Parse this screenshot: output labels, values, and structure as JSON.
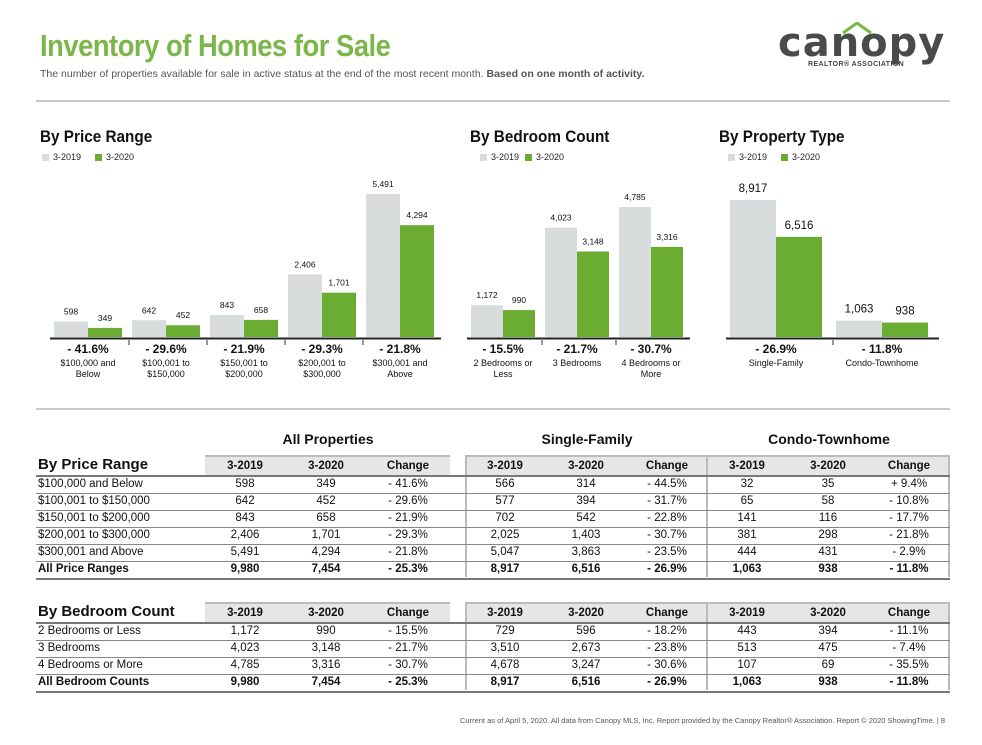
{
  "header": {
    "title": "Inventory of Homes for Sale",
    "subtitle": "The number of properties available for sale in active status at the end of the most recent month.",
    "subtitle_bold": "Based on one month of activity."
  },
  "logo": {
    "word": "canopy",
    "sub": "REALTOR® ASSOCIATION"
  },
  "colors": {
    "prior": "#d9dcdc",
    "current": "#6aad32",
    "title": "#7ab648"
  },
  "legend": {
    "prior": "3-2019",
    "current": "3-2020"
  },
  "chart_data": [
    {
      "type": "bar",
      "title": "By Price Range",
      "categories": [
        "$100,000 and Below",
        "$100,001 to $150,000",
        "$150,001 to $200,000",
        "$200,001 to $300,000",
        "$300,001 and Above"
      ],
      "category_lines": [
        [
          "$100,000 and",
          "Below"
        ],
        [
          "$100,001 to",
          "$150,000"
        ],
        [
          "$150,001 to",
          "$200,000"
        ],
        [
          "$200,001 to",
          "$300,000"
        ],
        [
          "$300,001 and",
          "Above"
        ]
      ],
      "series": [
        {
          "name": "3-2019",
          "values": [
            598,
            642,
            843,
            2406,
            5491
          ]
        },
        {
          "name": "3-2020",
          "values": [
            349,
            452,
            658,
            1701,
            4294
          ]
        }
      ],
      "value_labels": [
        [
          "598",
          "642",
          "843",
          "2,406",
          "5,491"
        ],
        [
          "349",
          "452",
          "658",
          "1,701",
          "4,294"
        ]
      ],
      "changes": [
        "- 41.6%",
        "- 29.6%",
        "- 21.9%",
        "- 29.3%",
        "- 21.8%"
      ],
      "ylim": [
        0,
        5491
      ]
    },
    {
      "type": "bar",
      "title": "By Bedroom Count",
      "categories": [
        "2 Bedrooms or Less",
        "3 Bedrooms",
        "4 Bedrooms or More"
      ],
      "category_lines": [
        [
          "2 Bedrooms or",
          "Less"
        ],
        [
          "3 Bedrooms"
        ],
        [
          "4 Bedrooms or",
          "More"
        ]
      ],
      "series": [
        {
          "name": "3-2019",
          "values": [
            1172,
            4023,
            4785
          ]
        },
        {
          "name": "3-2020",
          "values": [
            990,
            3148,
            3316
          ]
        }
      ],
      "value_labels": [
        [
          "1,172",
          "4,023",
          "4,785"
        ],
        [
          "990",
          "3,148",
          "3,316"
        ]
      ],
      "changes": [
        "- 15.5%",
        "- 21.7%",
        "- 30.7%"
      ],
      "ylim": [
        0,
        4785
      ]
    },
    {
      "type": "bar",
      "title": "By Property Type",
      "categories": [
        "Single-Family",
        "Condo-Townhome"
      ],
      "category_lines": [
        [
          "Single-Family"
        ],
        [
          "Condo-Townhome"
        ]
      ],
      "series": [
        {
          "name": "3-2019",
          "values": [
            8917,
            1063
          ]
        },
        {
          "name": "3-2020",
          "values": [
            6516,
            938
          ]
        }
      ],
      "value_labels": [
        [
          "8,917",
          "1,063"
        ],
        [
          "6,516",
          "938"
        ]
      ],
      "changes": [
        "- 26.9%",
        "- 11.8%"
      ],
      "ylim": [
        0,
        8917
      ]
    }
  ],
  "tables": {
    "group_titles": [
      "All Properties",
      "Single-Family",
      "Condo-Townhome"
    ],
    "col_headers": [
      "3-2019",
      "3-2020",
      "Change"
    ],
    "price": {
      "heading": "By Price Range",
      "rows": [
        {
          "label": "$100,000 and Below",
          "cells": [
            "598",
            "349",
            "- 41.6%",
            "566",
            "314",
            "- 44.5%",
            "32",
            "35",
            "+ 9.4%"
          ]
        },
        {
          "label": "$100,001 to $150,000",
          "cells": [
            "642",
            "452",
            "- 29.6%",
            "577",
            "394",
            "- 31.7%",
            "65",
            "58",
            "- 10.8%"
          ]
        },
        {
          "label": "$150,001 to $200,000",
          "cells": [
            "843",
            "658",
            "- 21.9%",
            "702",
            "542",
            "- 22.8%",
            "141",
            "116",
            "- 17.7%"
          ]
        },
        {
          "label": "$200,001 to $300,000",
          "cells": [
            "2,406",
            "1,701",
            "- 29.3%",
            "2,025",
            "1,403",
            "- 30.7%",
            "381",
            "298",
            "- 21.8%"
          ]
        },
        {
          "label": "$300,001 and Above",
          "cells": [
            "5,491",
            "4,294",
            "- 21.8%",
            "5,047",
            "3,863",
            "- 23.5%",
            "444",
            "431",
            "- 2.9%"
          ]
        }
      ],
      "total": {
        "label": "All Price Ranges",
        "cells": [
          "9,980",
          "7,454",
          "- 25.3%",
          "8,917",
          "6,516",
          "- 26.9%",
          "1,063",
          "938",
          "- 11.8%"
        ]
      }
    },
    "bedroom": {
      "heading": "By Bedroom Count",
      "rows": [
        {
          "label": "2 Bedrooms or Less",
          "cells": [
            "1,172",
            "990",
            "- 15.5%",
            "729",
            "596",
            "- 18.2%",
            "443",
            "394",
            "- 11.1%"
          ]
        },
        {
          "label": "3 Bedrooms",
          "cells": [
            "4,023",
            "3,148",
            "- 21.7%",
            "3,510",
            "2,673",
            "- 23.8%",
            "513",
            "475",
            "- 7.4%"
          ]
        },
        {
          "label": "4 Bedrooms or More",
          "cells": [
            "4,785",
            "3,316",
            "- 30.7%",
            "4,678",
            "3,247",
            "- 30.6%",
            "107",
            "69",
            "- 35.5%"
          ]
        }
      ],
      "total": {
        "label": "All Bedroom Counts",
        "cells": [
          "9,980",
          "7,454",
          "- 25.3%",
          "8,917",
          "6,516",
          "- 26.9%",
          "1,063",
          "938",
          "- 11.8%"
        ]
      }
    }
  },
  "footer": "Current as of April 5, 2020. All data from Canopy MLS, Inc. Report provided by the Canopy Realtor® Association. Report © 2020 ShowingTime.  |  8"
}
